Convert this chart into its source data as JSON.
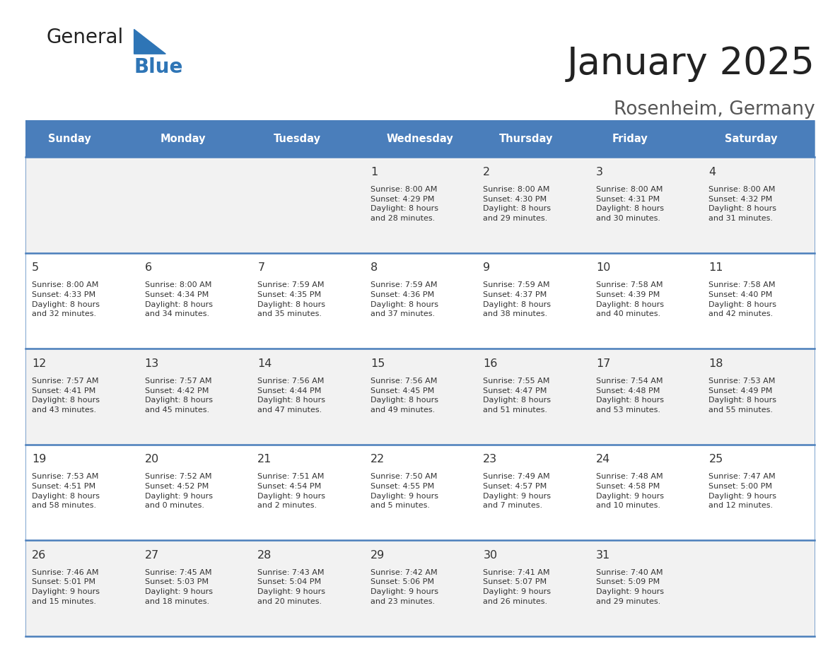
{
  "title": "January 2025",
  "subtitle": "Rosenheim, Germany",
  "days_of_week": [
    "Sunday",
    "Monday",
    "Tuesday",
    "Wednesday",
    "Thursday",
    "Friday",
    "Saturday"
  ],
  "header_bg": "#4A7EBB",
  "header_text": "#FFFFFF",
  "row_bg_even": "#F2F2F2",
  "row_bg_odd": "#FFFFFF",
  "cell_text_color": "#333333",
  "day_num_color": "#333333",
  "border_color": "#4A7EBB",
  "title_color": "#222222",
  "subtitle_color": "#555555",
  "logo_general_color": "#222222",
  "logo_blue_color": "#2E75B6",
  "calendar": [
    [
      null,
      null,
      null,
      {
        "day": 1,
        "sunrise": "8:00 AM",
        "sunset": "4:29 PM",
        "daylight_h": "8 hours",
        "daylight_m": "and 28 minutes."
      },
      {
        "day": 2,
        "sunrise": "8:00 AM",
        "sunset": "4:30 PM",
        "daylight_h": "8 hours",
        "daylight_m": "and 29 minutes."
      },
      {
        "day": 3,
        "sunrise": "8:00 AM",
        "sunset": "4:31 PM",
        "daylight_h": "8 hours",
        "daylight_m": "and 30 minutes."
      },
      {
        "day": 4,
        "sunrise": "8:00 AM",
        "sunset": "4:32 PM",
        "daylight_h": "8 hours",
        "daylight_m": "and 31 minutes."
      }
    ],
    [
      {
        "day": 5,
        "sunrise": "8:00 AM",
        "sunset": "4:33 PM",
        "daylight_h": "8 hours",
        "daylight_m": "and 32 minutes."
      },
      {
        "day": 6,
        "sunrise": "8:00 AM",
        "sunset": "4:34 PM",
        "daylight_h": "8 hours",
        "daylight_m": "and 34 minutes."
      },
      {
        "day": 7,
        "sunrise": "7:59 AM",
        "sunset": "4:35 PM",
        "daylight_h": "8 hours",
        "daylight_m": "and 35 minutes."
      },
      {
        "day": 8,
        "sunrise": "7:59 AM",
        "sunset": "4:36 PM",
        "daylight_h": "8 hours",
        "daylight_m": "and 37 minutes."
      },
      {
        "day": 9,
        "sunrise": "7:59 AM",
        "sunset": "4:37 PM",
        "daylight_h": "8 hours",
        "daylight_m": "and 38 minutes."
      },
      {
        "day": 10,
        "sunrise": "7:58 AM",
        "sunset": "4:39 PM",
        "daylight_h": "8 hours",
        "daylight_m": "and 40 minutes."
      },
      {
        "day": 11,
        "sunrise": "7:58 AM",
        "sunset": "4:40 PM",
        "daylight_h": "8 hours",
        "daylight_m": "and 42 minutes."
      }
    ],
    [
      {
        "day": 12,
        "sunrise": "7:57 AM",
        "sunset": "4:41 PM",
        "daylight_h": "8 hours",
        "daylight_m": "and 43 minutes."
      },
      {
        "day": 13,
        "sunrise": "7:57 AM",
        "sunset": "4:42 PM",
        "daylight_h": "8 hours",
        "daylight_m": "and 45 minutes."
      },
      {
        "day": 14,
        "sunrise": "7:56 AM",
        "sunset": "4:44 PM",
        "daylight_h": "8 hours",
        "daylight_m": "and 47 minutes."
      },
      {
        "day": 15,
        "sunrise": "7:56 AM",
        "sunset": "4:45 PM",
        "daylight_h": "8 hours",
        "daylight_m": "and 49 minutes."
      },
      {
        "day": 16,
        "sunrise": "7:55 AM",
        "sunset": "4:47 PM",
        "daylight_h": "8 hours",
        "daylight_m": "and 51 minutes."
      },
      {
        "day": 17,
        "sunrise": "7:54 AM",
        "sunset": "4:48 PM",
        "daylight_h": "8 hours",
        "daylight_m": "and 53 minutes."
      },
      {
        "day": 18,
        "sunrise": "7:53 AM",
        "sunset": "4:49 PM",
        "daylight_h": "8 hours",
        "daylight_m": "and 55 minutes."
      }
    ],
    [
      {
        "day": 19,
        "sunrise": "7:53 AM",
        "sunset": "4:51 PM",
        "daylight_h": "8 hours",
        "daylight_m": "and 58 minutes."
      },
      {
        "day": 20,
        "sunrise": "7:52 AM",
        "sunset": "4:52 PM",
        "daylight_h": "9 hours",
        "daylight_m": "and 0 minutes."
      },
      {
        "day": 21,
        "sunrise": "7:51 AM",
        "sunset": "4:54 PM",
        "daylight_h": "9 hours",
        "daylight_m": "and 2 minutes."
      },
      {
        "day": 22,
        "sunrise": "7:50 AM",
        "sunset": "4:55 PM",
        "daylight_h": "9 hours",
        "daylight_m": "and 5 minutes."
      },
      {
        "day": 23,
        "sunrise": "7:49 AM",
        "sunset": "4:57 PM",
        "daylight_h": "9 hours",
        "daylight_m": "and 7 minutes."
      },
      {
        "day": 24,
        "sunrise": "7:48 AM",
        "sunset": "4:58 PM",
        "daylight_h": "9 hours",
        "daylight_m": "and 10 minutes."
      },
      {
        "day": 25,
        "sunrise": "7:47 AM",
        "sunset": "5:00 PM",
        "daylight_h": "9 hours",
        "daylight_m": "and 12 minutes."
      }
    ],
    [
      {
        "day": 26,
        "sunrise": "7:46 AM",
        "sunset": "5:01 PM",
        "daylight_h": "9 hours",
        "daylight_m": "and 15 minutes."
      },
      {
        "day": 27,
        "sunrise": "7:45 AM",
        "sunset": "5:03 PM",
        "daylight_h": "9 hours",
        "daylight_m": "and 18 minutes."
      },
      {
        "day": 28,
        "sunrise": "7:43 AM",
        "sunset": "5:04 PM",
        "daylight_h": "9 hours",
        "daylight_m": "and 20 minutes."
      },
      {
        "day": 29,
        "sunrise": "7:42 AM",
        "sunset": "5:06 PM",
        "daylight_h": "9 hours",
        "daylight_m": "and 23 minutes."
      },
      {
        "day": 30,
        "sunrise": "7:41 AM",
        "sunset": "5:07 PM",
        "daylight_h": "9 hours",
        "daylight_m": "and 26 minutes."
      },
      {
        "day": 31,
        "sunrise": "7:40 AM",
        "sunset": "5:09 PM",
        "daylight_h": "9 hours",
        "daylight_m": "and 29 minutes."
      },
      null
    ]
  ]
}
